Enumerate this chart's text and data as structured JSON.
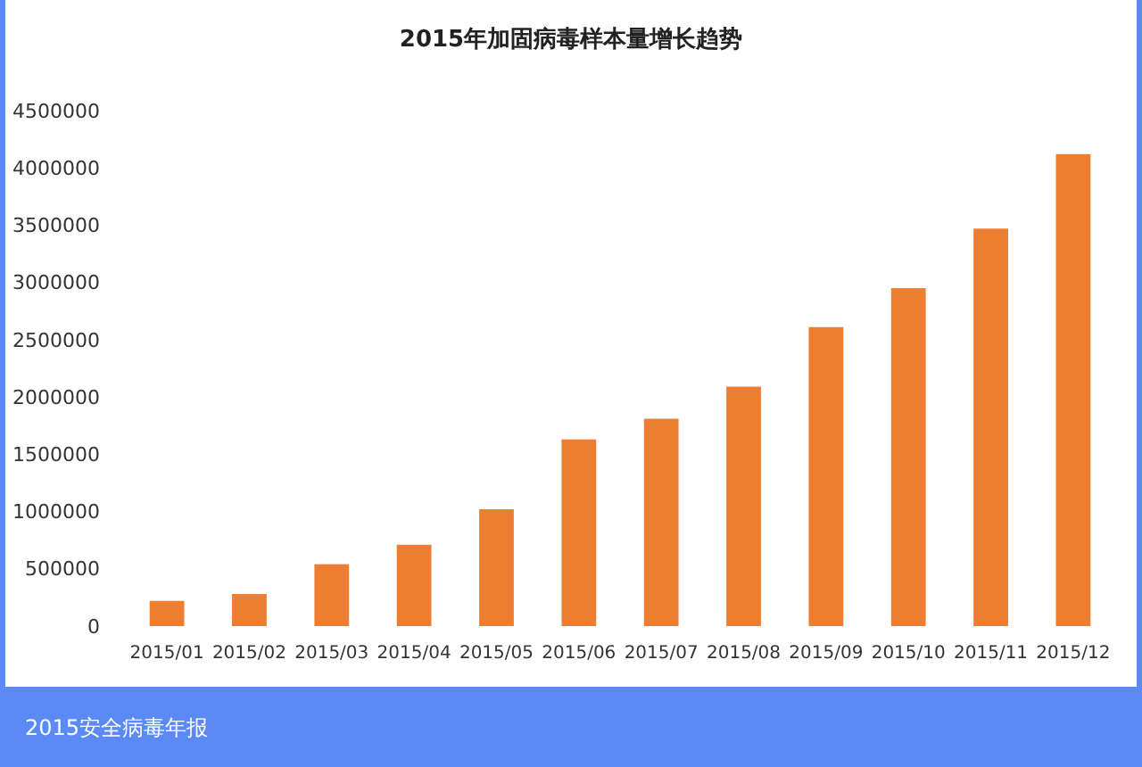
{
  "chart_data": {
    "type": "bar",
    "title": "2015年加固病毒样本量增长趋势",
    "categories": [
      "2015/01",
      "2015/02",
      "2015/03",
      "2015/04",
      "2015/05",
      "2015/06",
      "2015/07",
      "2015/08",
      "2015/09",
      "2015/10",
      "2015/11",
      "2015/12"
    ],
    "values": [
      220000,
      280000,
      540000,
      710000,
      1020000,
      1630000,
      1810000,
      2090000,
      2610000,
      2950000,
      3470000,
      4120000
    ],
    "color": "#ed7d31",
    "ylim": [
      0,
      4500000
    ],
    "yticks": [
      0,
      500000,
      1000000,
      1500000,
      2000000,
      2500000,
      3000000,
      3500000,
      4000000,
      4500000
    ],
    "grid": false,
    "annotations": [
      "2015安全病毒年报"
    ]
  }
}
